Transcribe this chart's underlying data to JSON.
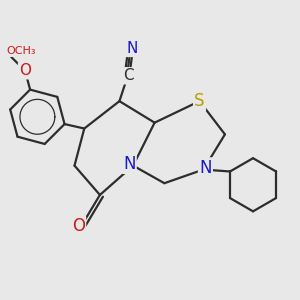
{
  "bg_color": "#e8e8e8",
  "bond_color": "#2d2d2d",
  "bond_width": 1.6,
  "atom_colors": {
    "C": "#2d2d2d",
    "N": "#1a1acc",
    "O": "#cc1a1a",
    "S": "#b8a000"
  },
  "xlim": [
    -3.0,
    4.5
  ],
  "ylim": [
    -3.5,
    3.2
  ]
}
